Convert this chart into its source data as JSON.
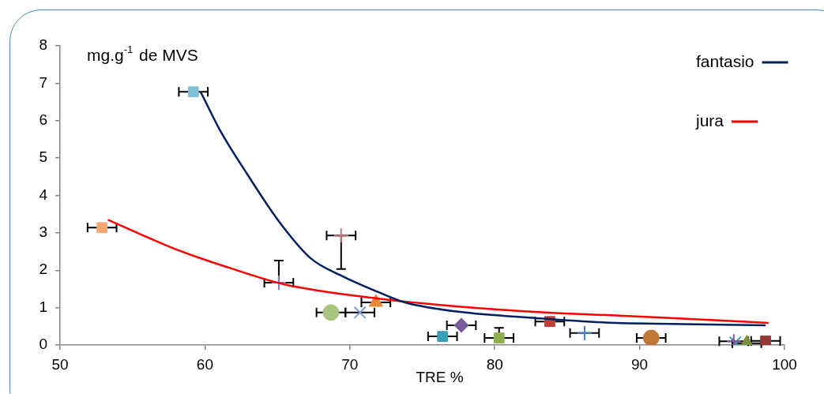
{
  "chart_data": {
    "type": "scatter",
    "xlabel": "TRE %",
    "ylabel": "mg.g$^{-1}$ de MVS",
    "xlim": [
      50,
      100
    ],
    "xticks": [
      50,
      60,
      70,
      80,
      90,
      100
    ],
    "ylim": [
      0,
      8
    ],
    "yticks": [
      0,
      1,
      2,
      3,
      4,
      5,
      6,
      7,
      8
    ],
    "grid": false,
    "legend": "top right",
    "series": [
      {
        "type": "line",
        "name": "fantasio",
        "color": "#002060",
        "marker": "none",
        "x": [
          59.7,
          61.1,
          62.9,
          65.1,
          67.3,
          69.5,
          72.0,
          73.8,
          77.5,
          82.9,
          88.4,
          91.3,
          98.7
        ],
        "values": [
          6.77,
          5.7,
          4.58,
          3.31,
          2.32,
          1.84,
          1.41,
          1.14,
          0.89,
          0.72,
          0.59,
          0.57,
          0.53
        ]
      },
      {
        "type": "line",
        "name": "jura",
        "color": "#ff0000",
        "marker": "none",
        "x": [
          53.3,
          58.2,
          61.8,
          65.5,
          72.0,
          77.5,
          84.0,
          88.4,
          91.3,
          98.9
        ],
        "values": [
          3.35,
          2.53,
          2.05,
          1.62,
          1.24,
          1.03,
          0.86,
          0.79,
          0.74,
          0.59
        ]
      },
      {
        "color": "#7fbfd4",
        "marker": "square",
        "x": [
          59.2
        ],
        "values": [
          6.77
        ],
        "xerrors": [
          1.0
        ]
      },
      {
        "color": "#f4a774",
        "marker": "square",
        "x": [
          52.9
        ],
        "values": [
          3.14
        ],
        "xerrors": [
          1.0
        ]
      },
      {
        "color": "#c0787a",
        "marker": "cross",
        "x": [
          69.4
        ],
        "values": [
          2.93
        ],
        "xerrors": [
          1.0
        ],
        "errors": [
          [
            2.03,
            2.93
          ]
        ]
      },
      {
        "color": "#8a78b0",
        "marker": "cross",
        "x": [
          65.1
        ],
        "values": [
          1.67
        ],
        "xerrors": [
          1.0
        ],
        "errors": [
          [
            1.67,
            2.26
          ]
        ]
      },
      {
        "color": "#a8c47e",
        "marker": "circle",
        "x": [
          68.7
        ],
        "values": [
          0.87
        ],
        "xerrors": [
          1.0
        ]
      },
      {
        "color": "#7c9bd0",
        "marker": "x",
        "x": [
          70.7
        ],
        "values": [
          0.87
        ],
        "xerrors": [
          1.0
        ]
      },
      {
        "color": "#e88a3c",
        "marker": "triangle",
        "x": [
          71.8
        ],
        "values": [
          1.14
        ],
        "xerrors": [
          1.0
        ]
      },
      {
        "color": "#3aa0b8",
        "marker": "square",
        "x": [
          76.4
        ],
        "values": [
          0.23
        ],
        "xerrors": [
          1.0
        ]
      },
      {
        "color": "#7a5a9c",
        "marker": "diamond",
        "x": [
          77.7
        ],
        "values": [
          0.53
        ],
        "xerrors": [
          1.0
        ]
      },
      {
        "color": "#8cae4e",
        "marker": "square",
        "x": [
          80.3
        ],
        "values": [
          0.19
        ],
        "xerrors": [
          1.0
        ],
        "errors": [
          [
            0.19,
            0.46
          ]
        ]
      },
      {
        "color": "#c0403c",
        "marker": "square",
        "x": [
          83.8
        ],
        "values": [
          0.63
        ],
        "xerrors": [
          1.0
        ]
      },
      {
        "color": "#4a7ec0",
        "marker": "cross",
        "x": [
          86.2
        ],
        "values": [
          0.32
        ],
        "xerrors": [
          1.0
        ]
      },
      {
        "color": "#c07838",
        "marker": "circle",
        "x": [
          90.8
        ],
        "values": [
          0.19
        ],
        "xerrors": [
          1.0
        ]
      },
      {
        "color": "#7a5a9c",
        "marker": "cross",
        "x": [
          96.5
        ],
        "values": [
          0.1
        ],
        "xerrors": [
          1.0
        ]
      },
      {
        "color": "#3a9ab0",
        "marker": "x",
        "x": [
          96.6
        ],
        "values": [
          0.07
        ]
      },
      {
        "color": "#77933c",
        "marker": "triangle",
        "x": [
          97.4
        ],
        "values": [
          0.05
        ],
        "xerrors": [
          1.0
        ]
      },
      {
        "color": "#953735",
        "marker": "square",
        "x": [
          98.7
        ],
        "values": [
          0.11
        ],
        "xerrors": [
          1.0
        ]
      }
    ]
  }
}
